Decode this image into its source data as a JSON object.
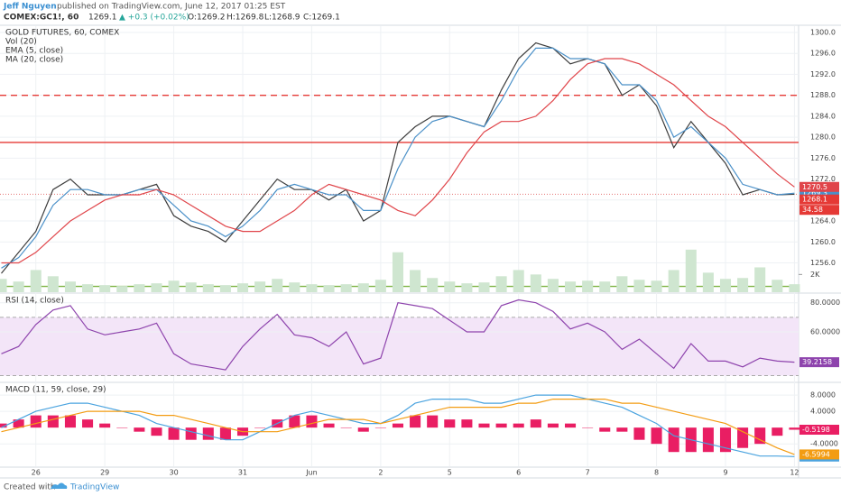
{
  "header": {
    "author": "Jeff Nguyen",
    "published": "published on TradingView.com, June 12, 2017 01:25 EST",
    "symbol": "COMEX:GC1!, 60",
    "last": "1269.1",
    "change": "▲ +0.3 (+0.02%)",
    "open": "O:1269.2",
    "high": "H:1269.8",
    "low": "L:1268.9",
    "close": "C:1269.1"
  },
  "footer": {
    "created": "Created with",
    "brand": "TradingView"
  },
  "chart_data": [
    {
      "type": "line",
      "title": "GOLD FUTURES, 60, COMEX",
      "x": [
        -0.5,
        -0.25,
        0,
        0.25,
        0.5,
        0.75,
        1,
        1.25,
        1.5,
        1.75,
        2,
        2.25,
        2.5,
        2.75,
        3,
        3.25,
        3.5,
        3.75,
        4,
        4.25,
        4.5,
        4.75,
        5,
        5.25,
        5.5,
        5.75,
        6,
        6.25,
        6.5,
        6.75,
        7,
        7.25,
        7.5,
        7.75,
        8,
        8.25,
        8.5,
        8.75,
        9,
        9.25,
        9.5,
        9.75,
        10,
        10.25,
        10.5,
        10.75,
        11
      ],
      "xlim": [
        -0.52,
        11.06
      ],
      "ylim": [
        1250.4,
        1301.2
      ],
      "yticks": [
        {
          "value": 1256,
          "label": "1256.0"
        },
        {
          "value": 1260,
          "label": "1260.0"
        },
        {
          "value": 1264,
          "label": "1264.0"
        },
        {
          "value": 1268,
          "label": "1268.0"
        },
        {
          "value": 1272,
          "label": "1272.0"
        },
        {
          "value": 1276,
          "label": "1276.0"
        },
        {
          "value": 1280,
          "label": "1280.0"
        },
        {
          "value": 1284,
          "label": "1284.0"
        },
        {
          "value": 1288,
          "label": "1288.0"
        },
        {
          "value": 1292,
          "label": "1292.0"
        },
        {
          "value": 1296,
          "label": "1296.0"
        },
        {
          "value": 1300,
          "label": "1300.0"
        }
      ],
      "y2lim": [
        0,
        30000
      ],
      "y2ticks": [
        {
          "value": 2000,
          "label": "2K"
        }
      ],
      "grid": true,
      "series": [
        {
          "kind": "line",
          "color": "#3d3d3d",
          "values": [
            1254,
            1258,
            1262,
            1270,
            1272,
            1269,
            1269,
            1269,
            1270,
            1271,
            1265,
            1263,
            1262,
            1260,
            1264,
            1268,
            1272,
            1270,
            1270,
            1268,
            1270,
            1264,
            1266,
            1279,
            1282,
            1284,
            1284,
            1283,
            1282,
            1289,
            1295,
            1298,
            1297,
            1294,
            1295,
            1294,
            1288,
            1290,
            1286,
            1278,
            1283,
            1279,
            1275,
            1269,
            1270,
            1269,
            1269.1
          ]
        },
        {
          "name": "Vol (20)",
          "kind": "bar",
          "axis": "y2",
          "color": "#cfe6d0",
          "values": [
            1500,
            1200,
            2500,
            1800,
            1200,
            900,
            800,
            700,
            900,
            1000,
            1300,
            1100,
            900,
            800,
            1000,
            1200,
            1500,
            1100,
            900,
            800,
            900,
            1000,
            1400,
            4500,
            2500,
            1600,
            1200,
            1000,
            1100,
            1800,
            2500,
            2000,
            1500,
            1200,
            1300,
            1200,
            1800,
            1400,
            1300,
            2500,
            4800,
            2200,
            1500,
            1600,
            2800,
            1400,
            900
          ]
        },
        {
          "name": "EMA (5, close)",
          "kind": "line",
          "badge": true,
          "color": "#4a90c8",
          "values": [
            1255,
            1257,
            1261,
            1267,
            1270,
            1270,
            1269,
            1269,
            1270,
            1270,
            1267,
            1264,
            1263,
            1261,
            1263,
            1266,
            1270,
            1271,
            1270,
            1269,
            1269,
            1266,
            1266,
            1274,
            1280,
            1283,
            1284,
            1283,
            1282,
            1287,
            1293,
            1297,
            1297,
            1295,
            1295,
            1294,
            1290,
            1290,
            1287,
            1280,
            1282,
            1279,
            1276,
            1271,
            1270,
            1269,
            1269.3
          ]
        },
        {
          "name": "MA (20, close)",
          "kind": "line",
          "badge": true,
          "color": "#e0454a",
          "values": [
            1256,
            1256,
            1258,
            1261,
            1264,
            1266,
            1268,
            1269,
            1269,
            1270,
            1269,
            1267,
            1265,
            1263,
            1262,
            1262,
            1264,
            1266,
            1269,
            1271,
            1270,
            1269,
            1268,
            1266,
            1265,
            1268,
            1272,
            1277,
            1281,
            1283,
            1283,
            1284,
            1287,
            1291,
            1294,
            1295,
            1295,
            1294,
            1292,
            1290,
            1287,
            1284,
            1282,
            1279,
            1276,
            1273,
            1270.5
          ]
        }
      ],
      "hlines": [
        {
          "value": 1279,
          "color": "#e53935",
          "style": "solid"
        },
        {
          "value": 1288,
          "color": "#e53935",
          "style": "dashed"
        },
        {
          "value": 1251.5,
          "color": "#7cb342",
          "style": "solid"
        },
        {
          "value": 1269.1,
          "color": "#e57373",
          "style": "dotted"
        }
      ],
      "marker": 1268.1,
      "marker_color": "#e53935",
      "countdown": "34.58"
    },
    {
      "type": "line",
      "title": "RSI (14, close)",
      "x": [
        -0.5,
        -0.25,
        0,
        0.25,
        0.5,
        0.75,
        1,
        1.25,
        1.5,
        1.75,
        2,
        2.25,
        2.5,
        2.75,
        3,
        3.25,
        3.5,
        3.75,
        4,
        4.25,
        4.5,
        4.75,
        5,
        5.25,
        5.5,
        5.75,
        6,
        6.25,
        6.5,
        6.75,
        7,
        7.25,
        7.5,
        7.75,
        8,
        8.25,
        8.5,
        8.75,
        9,
        9.25,
        9.5,
        9.75,
        10,
        10.25,
        10.5,
        10.75,
        11
      ],
      "xlim": [
        -0.52,
        11.06
      ],
      "ylim": [
        26,
        86
      ],
      "yticks": [
        {
          "value": 60,
          "label": "60.0000"
        },
        {
          "value": 80,
          "label": "80.0000"
        }
      ],
      "band": [
        30,
        70
      ],
      "band_color": "#f3e5f8",
      "grid": true,
      "series": [
        {
          "kind": "line",
          "badge": true,
          "color": "#8e44ad",
          "values": [
            45,
            50,
            65,
            75,
            78,
            62,
            58,
            60,
            62,
            66,
            45,
            38,
            36,
            34,
            50,
            62,
            72,
            58,
            56,
            50,
            60,
            38,
            42,
            80,
            78,
            76,
            68,
            60,
            60,
            78,
            82,
            80,
            74,
            62,
            66,
            60,
            48,
            55,
            45,
            35,
            52,
            40,
            40,
            36,
            42,
            40,
            39.2158
          ]
        }
      ]
    },
    {
      "type": "macd",
      "title": "MACD (11, 59, close, 29)",
      "x": [
        -0.5,
        -0.25,
        0,
        0.25,
        0.5,
        0.75,
        1,
        1.25,
        1.5,
        1.75,
        2,
        2.25,
        2.5,
        2.75,
        3,
        3.25,
        3.5,
        3.75,
        4,
        4.25,
        4.5,
        4.75,
        5,
        5.25,
        5.5,
        5.75,
        6,
        6.25,
        6.5,
        6.75,
        7,
        7.25,
        7.5,
        7.75,
        8,
        8.25,
        8.5,
        8.75,
        9,
        9.25,
        9.5,
        9.75,
        10,
        10.25,
        10.5,
        10.75,
        11
      ],
      "xlim": [
        -0.52,
        11.06
      ],
      "xticks": [
        {
          "value": 0,
          "label": "26"
        },
        {
          "value": 1,
          "label": "29"
        },
        {
          "value": 2,
          "label": "30"
        },
        {
          "value": 3,
          "label": "31"
        },
        {
          "value": 4,
          "label": "Jun"
        },
        {
          "value": 5,
          "label": "2"
        },
        {
          "value": 6,
          "label": "5"
        },
        {
          "value": 7,
          "label": "6"
        },
        {
          "value": 8,
          "label": "7"
        },
        {
          "value": 9,
          "label": "8"
        },
        {
          "value": 10,
          "label": "9"
        },
        {
          "value": 11,
          "label": "12"
        }
      ],
      "ylim": [
        -9.5,
        10.9
      ],
      "yticks": [
        {
          "value": -4,
          "label": "-4.0000"
        },
        {
          "value": 4,
          "label": "4.0000"
        },
        {
          "value": 8,
          "label": "8.0000"
        }
      ],
      "grid": true,
      "series": [
        {
          "kind": "bar",
          "badge": true,
          "color": "#e91e63",
          "values": [
            1,
            2,
            3,
            3,
            3,
            2,
            1,
            0,
            -1,
            -2,
            -3,
            -3,
            -3,
            -3,
            -2,
            0,
            2,
            3,
            3,
            1,
            0,
            -1,
            0,
            1,
            3,
            3,
            2,
            2,
            1,
            1,
            1,
            2,
            1,
            1,
            0,
            -1,
            -1,
            -3,
            -4,
            -6,
            -6,
            -6,
            -6,
            -5,
            -4,
            -2,
            -0.5198
          ]
        },
        {
          "kind": "line",
          "badge": true,
          "color": "#4aa3df",
          "values": [
            0,
            2,
            4,
            5,
            6,
            6,
            5,
            4,
            3,
            1,
            0,
            -1,
            -2,
            -3,
            -3,
            -1,
            1,
            3,
            4,
            3,
            2,
            1,
            1,
            3,
            6,
            7,
            7,
            7,
            6,
            6,
            7,
            8,
            8,
            8,
            7,
            6,
            5,
            3,
            1,
            -2,
            -3,
            -4,
            -5,
            -6,
            -7,
            -7,
            -7.1192
          ]
        },
        {
          "kind": "line",
          "badge": true,
          "color": "#f39c12",
          "values": [
            -1,
            0,
            1,
            2,
            3,
            4,
            4,
            4,
            4,
            3,
            3,
            2,
            1,
            0,
            -1,
            -1,
            -1,
            0,
            1,
            2,
            2,
            2,
            1,
            2,
            3,
            4,
            5,
            5,
            5,
            5,
            6,
            6,
            7,
            7,
            7,
            7,
            6,
            6,
            5,
            4,
            3,
            2,
            1,
            -1,
            -3,
            -5,
            -6.5994
          ]
        }
      ]
    }
  ]
}
